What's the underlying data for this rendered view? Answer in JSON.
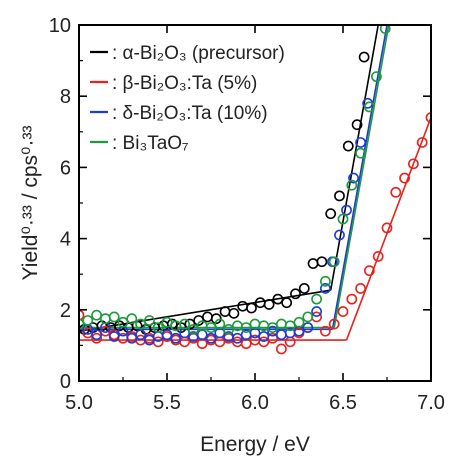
{
  "chart_data": {
    "type": "scatter",
    "xlabel": "Energy / eV",
    "ylabel": "Yield⁰·³³ / cps⁰·³³",
    "xlim": [
      5.0,
      7.0
    ],
    "ylim": [
      0,
      10
    ],
    "xticks": [
      "5.0",
      "5.5",
      "6.0",
      "6.5",
      "7.0"
    ],
    "yticks": [
      "0",
      "2",
      "4",
      "6",
      "8",
      "10"
    ],
    "legend_position": "top-left",
    "grid": false,
    "series": [
      {
        "name": "α-Bi₂O₃ (precursor)",
        "color": "#000000",
        "points": [
          [
            5.03,
            1.45
          ],
          [
            5.08,
            1.5
          ],
          [
            5.13,
            1.55
          ],
          [
            5.18,
            1.5
          ],
          [
            5.23,
            1.55
          ],
          [
            5.28,
            1.5
          ],
          [
            5.33,
            1.55
          ],
          [
            5.38,
            1.45
          ],
          [
            5.43,
            1.5
          ],
          [
            5.48,
            1.55
          ],
          [
            5.53,
            1.6
          ],
          [
            5.58,
            1.5
          ],
          [
            5.63,
            1.6
          ],
          [
            5.68,
            1.7
          ],
          [
            5.73,
            1.8
          ],
          [
            5.78,
            1.75
          ],
          [
            5.83,
            1.95
          ],
          [
            5.88,
            1.9
          ],
          [
            5.93,
            2.1
          ],
          [
            5.98,
            2.05
          ],
          [
            6.03,
            2.2
          ],
          [
            6.08,
            2.15
          ],
          [
            6.13,
            2.3
          ],
          [
            6.18,
            2.2
          ],
          [
            6.23,
            2.45
          ],
          [
            6.28,
            2.6
          ],
          [
            6.33,
            3.3
          ],
          [
            6.38,
            3.35
          ],
          [
            6.43,
            4.7
          ],
          [
            6.48,
            5.2
          ],
          [
            6.53,
            6.6
          ],
          [
            6.58,
            7.2
          ],
          [
            6.62,
            9.1
          ]
        ],
        "fit_lines": [
          [
            [
              5.0,
              1.4
            ],
            [
              6.43,
              2.55
            ]
          ],
          [
            [
              6.43,
              2.55
            ],
            [
              6.7,
              10.0
            ]
          ]
        ]
      },
      {
        "name": "β-Bi₂O₃:Ta (5%)",
        "color": "#e8211c",
        "points": [
          [
            5.0,
            1.85
          ],
          [
            5.05,
            1.35
          ],
          [
            5.1,
            1.2
          ],
          [
            5.15,
            1.4
          ],
          [
            5.2,
            1.3
          ],
          [
            5.25,
            1.2
          ],
          [
            5.3,
            1.25
          ],
          [
            5.35,
            1.15
          ],
          [
            5.4,
            1.2
          ],
          [
            5.45,
            1.1
          ],
          [
            5.5,
            1.25
          ],
          [
            5.55,
            1.15
          ],
          [
            5.6,
            1.1
          ],
          [
            5.65,
            1.2
          ],
          [
            5.7,
            1.05
          ],
          [
            5.75,
            1.15
          ],
          [
            5.8,
            1.1
          ],
          [
            5.85,
            1.2
          ],
          [
            5.9,
            1.1
          ],
          [
            5.95,
            1.05
          ],
          [
            6.0,
            1.15
          ],
          [
            6.05,
            1.1
          ],
          [
            6.1,
            1.2
          ],
          [
            6.15,
            0.9
          ],
          [
            6.2,
            1.1
          ],
          [
            6.25,
            1.35
          ],
          [
            6.3,
            1.5
          ],
          [
            6.35,
            1.8
          ],
          [
            6.4,
            1.4
          ],
          [
            6.45,
            1.6
          ],
          [
            6.5,
            1.95
          ],
          [
            6.55,
            2.3
          ],
          [
            6.6,
            2.6
          ],
          [
            6.65,
            3.1
          ],
          [
            6.7,
            3.5
          ],
          [
            6.75,
            4.3
          ],
          [
            6.8,
            5.3
          ],
          [
            6.85,
            5.7
          ],
          [
            6.9,
            6.1
          ],
          [
            6.95,
            6.7
          ],
          [
            7.0,
            7.4
          ]
        ],
        "fit_lines": [
          [
            [
              5.0,
              1.15
            ],
            [
              6.52,
              1.15
            ]
          ],
          [
            [
              6.52,
              1.15
            ],
            [
              7.0,
              7.4
            ]
          ]
        ]
      },
      {
        "name": "δ-Bi₂O₃:Ta (10%)",
        "color": "#1f3bd6",
        "points": [
          [
            5.05,
            1.45
          ],
          [
            5.1,
            1.3
          ],
          [
            5.15,
            1.5
          ],
          [
            5.2,
            1.25
          ],
          [
            5.25,
            1.4
          ],
          [
            5.3,
            1.2
          ],
          [
            5.35,
            1.3
          ],
          [
            5.4,
            1.15
          ],
          [
            5.45,
            1.25
          ],
          [
            5.5,
            1.3
          ],
          [
            5.55,
            1.2
          ],
          [
            5.6,
            1.35
          ],
          [
            5.65,
            1.25
          ],
          [
            5.7,
            1.3
          ],
          [
            5.75,
            1.2
          ],
          [
            5.8,
            1.35
          ],
          [
            5.85,
            1.25
          ],
          [
            5.9,
            1.2
          ],
          [
            5.95,
            1.3
          ],
          [
            6.0,
            1.35
          ],
          [
            6.05,
            1.25
          ],
          [
            6.1,
            1.4
          ],
          [
            6.15,
            1.3
          ],
          [
            6.2,
            1.35
          ],
          [
            6.25,
            1.4
          ],
          [
            6.3,
            1.5
          ],
          [
            6.35,
            1.95
          ],
          [
            6.4,
            2.6
          ],
          [
            6.44,
            3.35
          ],
          [
            6.48,
            4.1
          ],
          [
            6.52,
            4.8
          ],
          [
            6.56,
            5.7
          ],
          [
            6.6,
            6.7
          ],
          [
            6.64,
            7.8
          ]
        ],
        "fit_lines": [
          [
            [
              5.0,
              1.45
            ],
            [
              6.44,
              1.45
            ]
          ],
          [
            [
              6.44,
              1.45
            ],
            [
              6.75,
              10.0
            ]
          ]
        ]
      },
      {
        "name": "Bi₃TaO₇",
        "color": "#1c9a3c",
        "points": [
          [
            5.0,
            1.6
          ],
          [
            5.05,
            1.7
          ],
          [
            5.1,
            1.85
          ],
          [
            5.15,
            1.75
          ],
          [
            5.2,
            1.8
          ],
          [
            5.25,
            1.65
          ],
          [
            5.3,
            1.75
          ],
          [
            5.35,
            1.6
          ],
          [
            5.4,
            1.7
          ],
          [
            5.45,
            1.5
          ],
          [
            5.5,
            1.65
          ],
          [
            5.55,
            1.55
          ],
          [
            5.6,
            1.6
          ],
          [
            5.65,
            1.45
          ],
          [
            5.7,
            1.55
          ],
          [
            5.75,
            1.5
          ],
          [
            5.8,
            1.6
          ],
          [
            5.85,
            1.45
          ],
          [
            5.9,
            1.55
          ],
          [
            5.95,
            1.5
          ],
          [
            6.0,
            1.6
          ],
          [
            6.05,
            1.55
          ],
          [
            6.1,
            1.5
          ],
          [
            6.15,
            1.6
          ],
          [
            6.2,
            1.55
          ],
          [
            6.25,
            1.65
          ],
          [
            6.3,
            1.8
          ],
          [
            6.35,
            2.3
          ],
          [
            6.4,
            2.8
          ],
          [
            6.45,
            3.35
          ],
          [
            6.5,
            4.55
          ],
          [
            6.55,
            5.5
          ],
          [
            6.6,
            6.4
          ],
          [
            6.65,
            7.7
          ],
          [
            6.69,
            8.55
          ],
          [
            6.74,
            9.9
          ]
        ],
        "fit_lines": [
          [
            [
              5.0,
              1.5
            ],
            [
              6.45,
              1.5
            ]
          ],
          [
            [
              6.45,
              1.5
            ],
            [
              6.76,
              10.0
            ]
          ]
        ]
      }
    ]
  }
}
